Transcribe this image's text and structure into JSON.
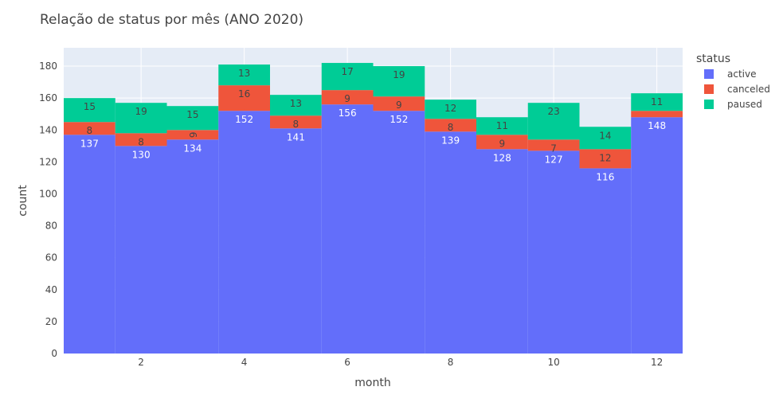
{
  "chart_data": {
    "type": "bar",
    "barmode": "stack",
    "title": "Relação de status por mês (ANO 2020)",
    "xlabel": "month",
    "ylabel": "count",
    "x": [
      1,
      2,
      3,
      4,
      5,
      6,
      7,
      8,
      9,
      10,
      11,
      12
    ],
    "xticks": [
      "2",
      "4",
      "6",
      "8",
      "10",
      "12"
    ],
    "xlim": [
      0.5,
      12.5
    ],
    "ylim": [
      0,
      191.5
    ],
    "yticks": [
      "0",
      "20",
      "40",
      "60",
      "80",
      "100",
      "120",
      "140",
      "160",
      "180"
    ],
    "legend_title": "status",
    "legend_position": "top-right",
    "grid": true,
    "series": [
      {
        "name": "active",
        "color": "#636EFA",
        "label_color": "#ffffff",
        "values": [
          137,
          130,
          134,
          152,
          141,
          156,
          152,
          139,
          128,
          127,
          116,
          148
        ]
      },
      {
        "name": "canceled",
        "color": "#EF553B",
        "label_color": "#444444",
        "values": [
          8,
          8,
          6,
          16,
          8,
          9,
          9,
          8,
          9,
          7,
          12,
          4
        ]
      },
      {
        "name": "paused",
        "color": "#00CC96",
        "label_color": "#444444",
        "values": [
          15,
          19,
          15,
          13,
          13,
          17,
          19,
          12,
          11,
          23,
          14,
          11
        ]
      }
    ]
  }
}
